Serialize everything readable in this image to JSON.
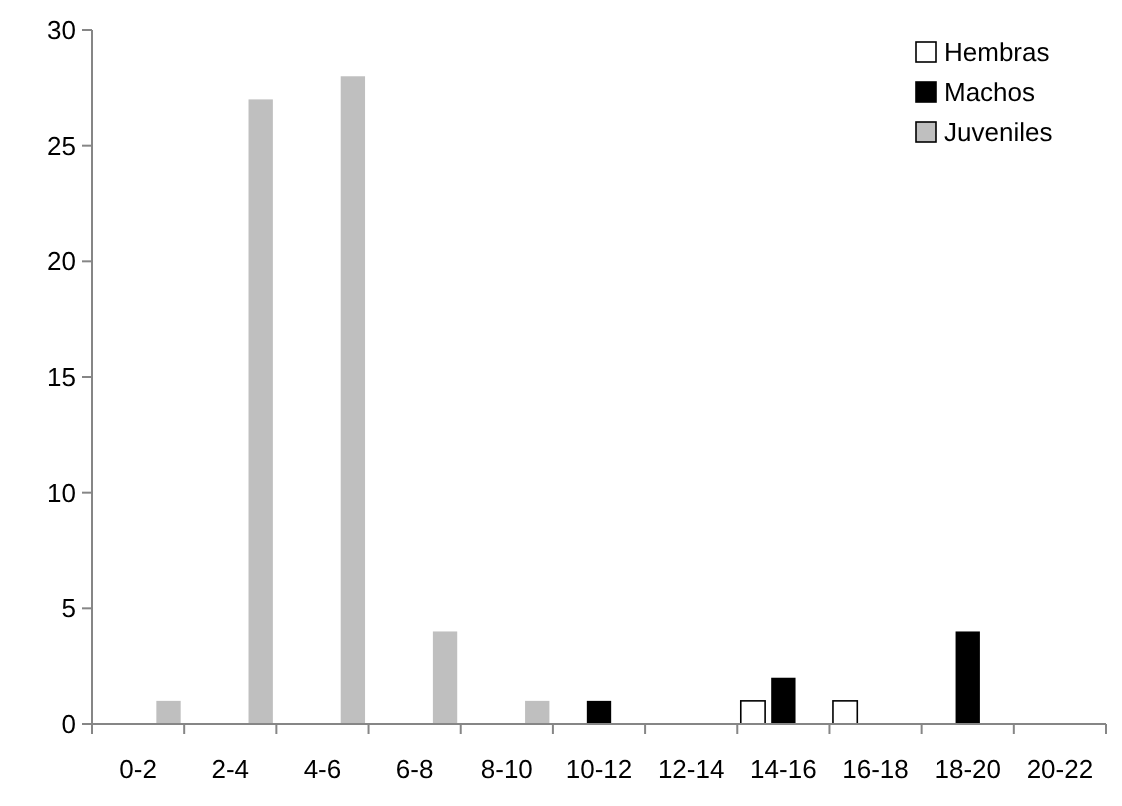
{
  "chart_data": {
    "type": "bar",
    "categories": [
      "0-2",
      "2-4",
      "4-6",
      "6-8",
      "8-10",
      "10-12",
      "12-14",
      "14-16",
      "16-18",
      "18-20",
      "20-22"
    ],
    "series": [
      {
        "name": "Hembras",
        "color": "#ffffff",
        "values": [
          0,
          0,
          0,
          0,
          0,
          0,
          0,
          1,
          1,
          0,
          0
        ]
      },
      {
        "name": "Machos",
        "color": "#000000",
        "values": [
          0,
          0,
          0,
          0,
          0,
          1,
          0,
          2,
          0,
          4,
          0
        ]
      },
      {
        "name": "Juveniles",
        "color": "#bfbfbf",
        "values": [
          1,
          27,
          28,
          4,
          1,
          0,
          0,
          0,
          0,
          0,
          0
        ]
      }
    ],
    "ylim": [
      0,
      30
    ],
    "yticks": [
      0,
      5,
      10,
      15,
      20,
      25,
      30
    ],
    "grid": false,
    "legend": "top right"
  }
}
